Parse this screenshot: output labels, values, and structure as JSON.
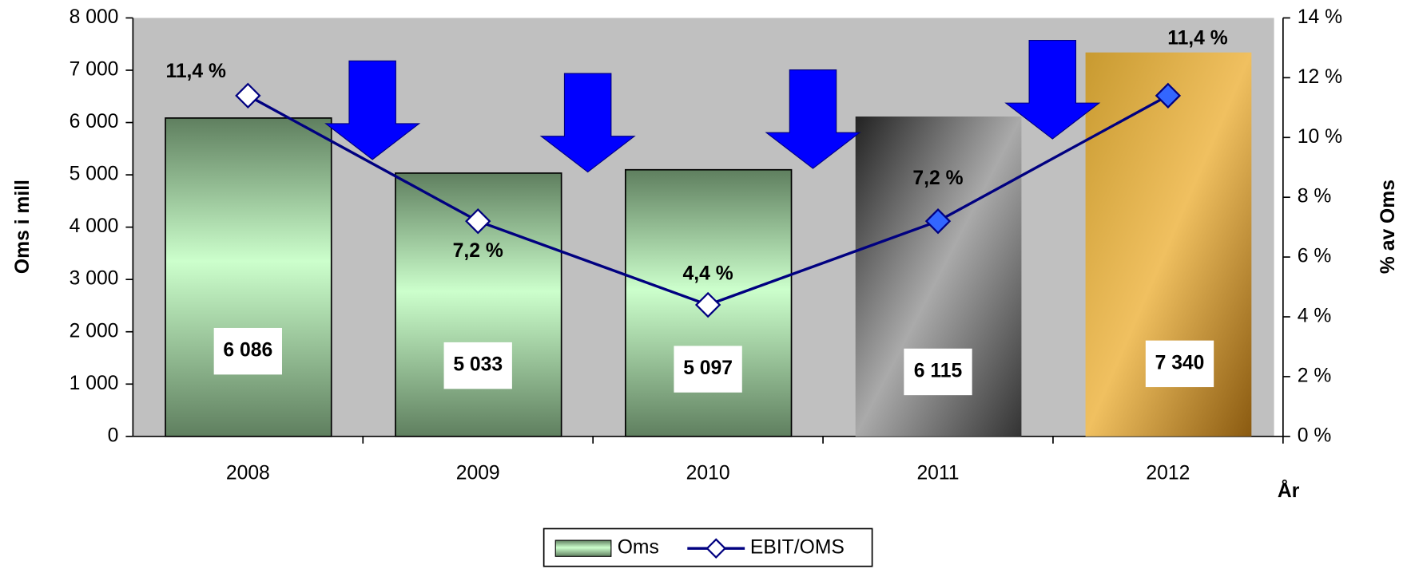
{
  "chart_data": {
    "type": "bar",
    "categories": [
      "2008",
      "2009",
      "2010",
      "2011",
      "2012"
    ],
    "x_label": "År",
    "y_label": "Oms i mill",
    "y2_label": "% av Oms",
    "series": [
      {
        "name": "Oms",
        "type": "bar",
        "color": "#a8d8a8",
        "values": [
          6086,
          5033,
          5097,
          6115,
          7340
        ],
        "value_labels": [
          "6 086",
          "5 033",
          "5 097",
          "6 115",
          "7 340"
        ]
      },
      {
        "name": "EBIT/OMS",
        "type": "line",
        "axis": "y2",
        "color": "#000080",
        "values": [
          11.4,
          7.2,
          4.4,
          7.2,
          11.4
        ],
        "value_labels": [
          "11,4 %",
          "7,2 %",
          "4,4 %",
          "7,2 %",
          "11,4 %"
        ],
        "marker_colors": [
          "#ffffff",
          "#ffffff",
          "#ffffff",
          "#3366ff",
          "#3366ff"
        ]
      }
    ],
    "ylim": [
      0,
      8000
    ],
    "yticks": [
      0,
      {
        "value": 1000,
        "label": "1 000"
      },
      {
        "value": 2000,
        "label": "2 000"
      },
      {
        "value": 3000,
        "label": "3 000"
      },
      {
        "value": 4000,
        "label": "4 000"
      },
      {
        "value": 5000,
        "label": "5 000"
      },
      {
        "value": 6000,
        "label": "6 000"
      },
      {
        "value": 7000,
        "label": "7 000"
      },
      {
        "value": 8000,
        "label": "8 000"
      }
    ],
    "y2lim": [
      0,
      14
    ],
    "y2ticks": [
      {
        "value": 0,
        "label": "0 %"
      },
      {
        "value": 2,
        "label": "2 %"
      },
      {
        "value": 4,
        "label": "4 %"
      },
      {
        "value": 6,
        "label": "6 %"
      },
      {
        "value": 8,
        "label": "8 %"
      },
      {
        "value": 10,
        "label": "10 %"
      },
      {
        "value": 12,
        "label": "12 %"
      },
      {
        "value": 14,
        "label": "14 %"
      }
    ],
    "grid": false,
    "legend": "bottom"
  }
}
